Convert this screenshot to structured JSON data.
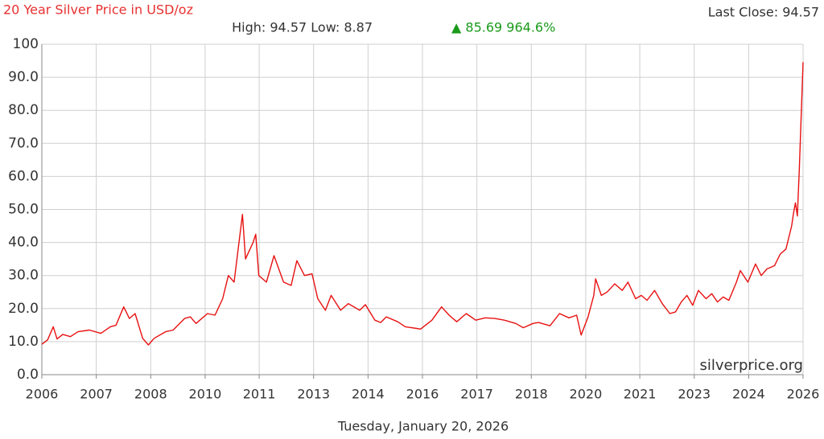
{
  "chart_data": {
    "type": "line",
    "title": "20 Year Silver Price in USD/oz",
    "last_close": "Last Close: 94.57",
    "stats": "High: 94.57 Low: 8.87",
    "change": "▲ 85.69 964.6%",
    "watermark": "silverprice.org",
    "footer": "Tuesday, January 20, 2026",
    "color": "#e81010",
    "change_color": "#1a9a1a",
    "grid": true,
    "xlim": [
      2006.05,
      2026.05
    ],
    "xticks": [
      {
        "value": 2006.05,
        "label": "2006"
      },
      {
        "value": 2007.48,
        "label": "2007"
      },
      {
        "value": 2008.91,
        "label": "2008"
      },
      {
        "value": 2010.34,
        "label": "2010"
      },
      {
        "value": 2011.76,
        "label": "2011"
      },
      {
        "value": 2013.19,
        "label": "2013"
      },
      {
        "value": 2014.62,
        "label": "2014"
      },
      {
        "value": 2016.05,
        "label": "2016"
      },
      {
        "value": 2017.48,
        "label": "2017"
      },
      {
        "value": 2018.91,
        "label": "2018"
      },
      {
        "value": 2020.34,
        "label": "2020"
      },
      {
        "value": 2021.76,
        "label": "2021"
      },
      {
        "value": 2023.19,
        "label": "2023"
      },
      {
        "value": 2024.62,
        "label": "2024"
      },
      {
        "value": 2026.05,
        "label": "2026"
      }
    ],
    "ylim": [
      0,
      100
    ],
    "yticks": [
      {
        "value": 0,
        "label": "0.0"
      },
      {
        "value": 10,
        "label": "10.0"
      },
      {
        "value": 20,
        "label": "20.0"
      },
      {
        "value": 30,
        "label": "30.0"
      },
      {
        "value": 40,
        "label": "40.0"
      },
      {
        "value": 50,
        "label": "50.0"
      },
      {
        "value": 60,
        "label": "60.0"
      },
      {
        "value": 70,
        "label": "70.0"
      },
      {
        "value": 80,
        "label": "80.0"
      },
      {
        "value": 90,
        "label": "90.0"
      },
      100
    ],
    "x": [
      2006.05,
      2006.2,
      2006.35,
      2006.45,
      2006.6,
      2006.8,
      2007.0,
      2007.3,
      2007.6,
      2007.85,
      2008.0,
      2008.2,
      2008.35,
      2008.5,
      2008.7,
      2008.85,
      2009.0,
      2009.3,
      2009.5,
      2009.8,
      2009.95,
      2010.1,
      2010.4,
      2010.6,
      2010.8,
      2010.95,
      2011.1,
      2011.32,
      2011.4,
      2011.6,
      2011.67,
      2011.75,
      2011.95,
      2012.15,
      2012.4,
      2012.6,
      2012.75,
      2012.95,
      2013.15,
      2013.3,
      2013.5,
      2013.65,
      2013.9,
      2014.1,
      2014.4,
      2014.55,
      2014.8,
      2014.95,
      2015.1,
      2015.4,
      2015.6,
      2015.9,
      2016.0,
      2016.3,
      2016.55,
      2016.75,
      2016.95,
      2017.2,
      2017.45,
      2017.7,
      2017.95,
      2018.2,
      2018.5,
      2018.7,
      2018.95,
      2019.1,
      2019.4,
      2019.65,
      2019.9,
      2020.1,
      2020.22,
      2020.4,
      2020.55,
      2020.6,
      2020.75,
      2020.9,
      2021.1,
      2021.3,
      2021.45,
      2021.65,
      2021.8,
      2021.95,
      2022.15,
      2022.35,
      2022.55,
      2022.7,
      2022.85,
      2023.0,
      2023.15,
      2023.3,
      2023.5,
      2023.65,
      2023.8,
      2023.95,
      2024.1,
      2024.3,
      2024.4,
      2024.6,
      2024.8,
      2024.95,
      2025.1,
      2025.3,
      2025.45,
      2025.6,
      2025.75,
      2025.8,
      2025.85,
      2025.9,
      2025.95,
      2026.0,
      2026.05
    ],
    "values": [
      9.2,
      10.5,
      14.5,
      10.8,
      12.2,
      11.5,
      13.0,
      13.5,
      12.5,
      14.5,
      15.0,
      20.5,
      17.0,
      18.5,
      11.0,
      9.0,
      11.0,
      13.0,
      13.5,
      17.0,
      17.5,
      15.5,
      18.5,
      18.0,
      23.0,
      30.0,
      28.0,
      48.5,
      35.0,
      40.0,
      42.5,
      30.0,
      28.0,
      36.0,
      28.0,
      27.0,
      34.5,
      30.0,
      30.5,
      23.0,
      19.5,
      24.0,
      19.5,
      21.5,
      19.5,
      21.2,
      16.5,
      15.8,
      17.5,
      16.0,
      14.5,
      14.0,
      13.8,
      16.5,
      20.5,
      18.0,
      16.0,
      18.5,
      16.5,
      17.2,
      17.0,
      16.5,
      15.5,
      14.2,
      15.5,
      15.8,
      14.8,
      18.5,
      17.2,
      18.0,
      12.0,
      17.5,
      24.0,
      29.0,
      24.0,
      25.0,
      27.5,
      25.5,
      28.0,
      23.0,
      24.0,
      22.5,
      25.5,
      21.5,
      18.5,
      19.0,
      22.0,
      24.0,
      21.0,
      25.5,
      23.0,
      24.5,
      22.0,
      23.5,
      22.5,
      28.0,
      31.5,
      28.0,
      33.5,
      30.0,
      32.0,
      33.0,
      36.5,
      38.0,
      45.0,
      49.0,
      52.0,
      48.0,
      62.0,
      78.0,
      94.57
    ]
  }
}
